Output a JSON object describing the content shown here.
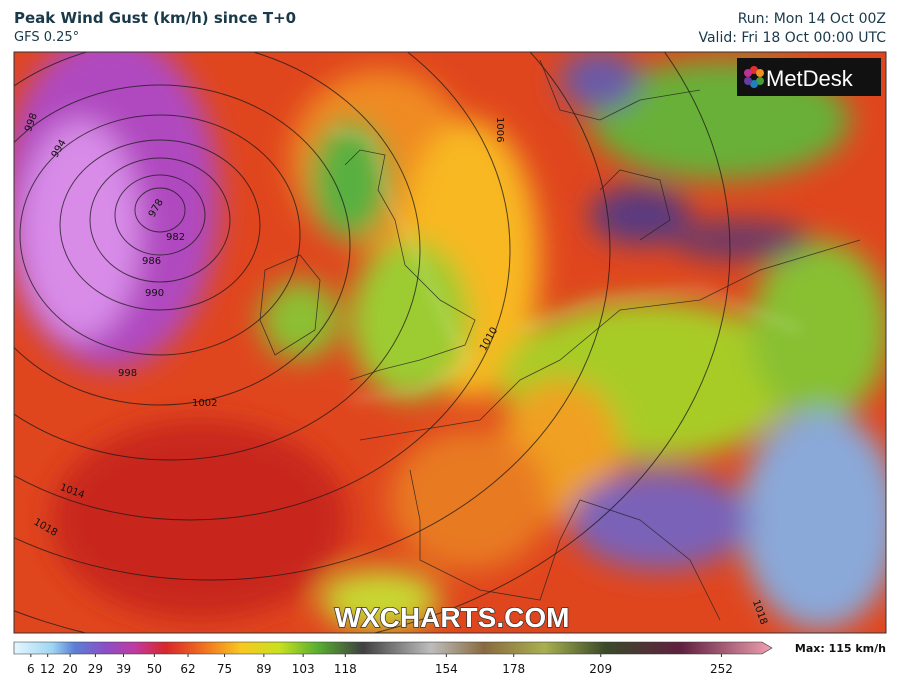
{
  "header": {
    "title": "Peak Wind Gust (km/h) since T+0",
    "model": "GFS 0.25°",
    "run": "Run: Mon 14 Oct 00Z",
    "valid": "Valid: Fri 18 Oct 00:00 UTC"
  },
  "logo": "MetDesk",
  "watermark": "WXCHARTS.COM",
  "isobar_labels": [
    998,
    994,
    978,
    982,
    986,
    990,
    998,
    1002,
    1006,
    1010,
    1014,
    1018,
    1018
  ],
  "colorbar": {
    "range": [
      0,
      270
    ],
    "ticks": [
      6,
      12,
      20,
      29,
      39,
      50,
      62,
      75,
      89,
      103,
      118,
      154,
      178,
      209,
      252
    ]
  },
  "max_label": "Max: 115 km/h"
}
